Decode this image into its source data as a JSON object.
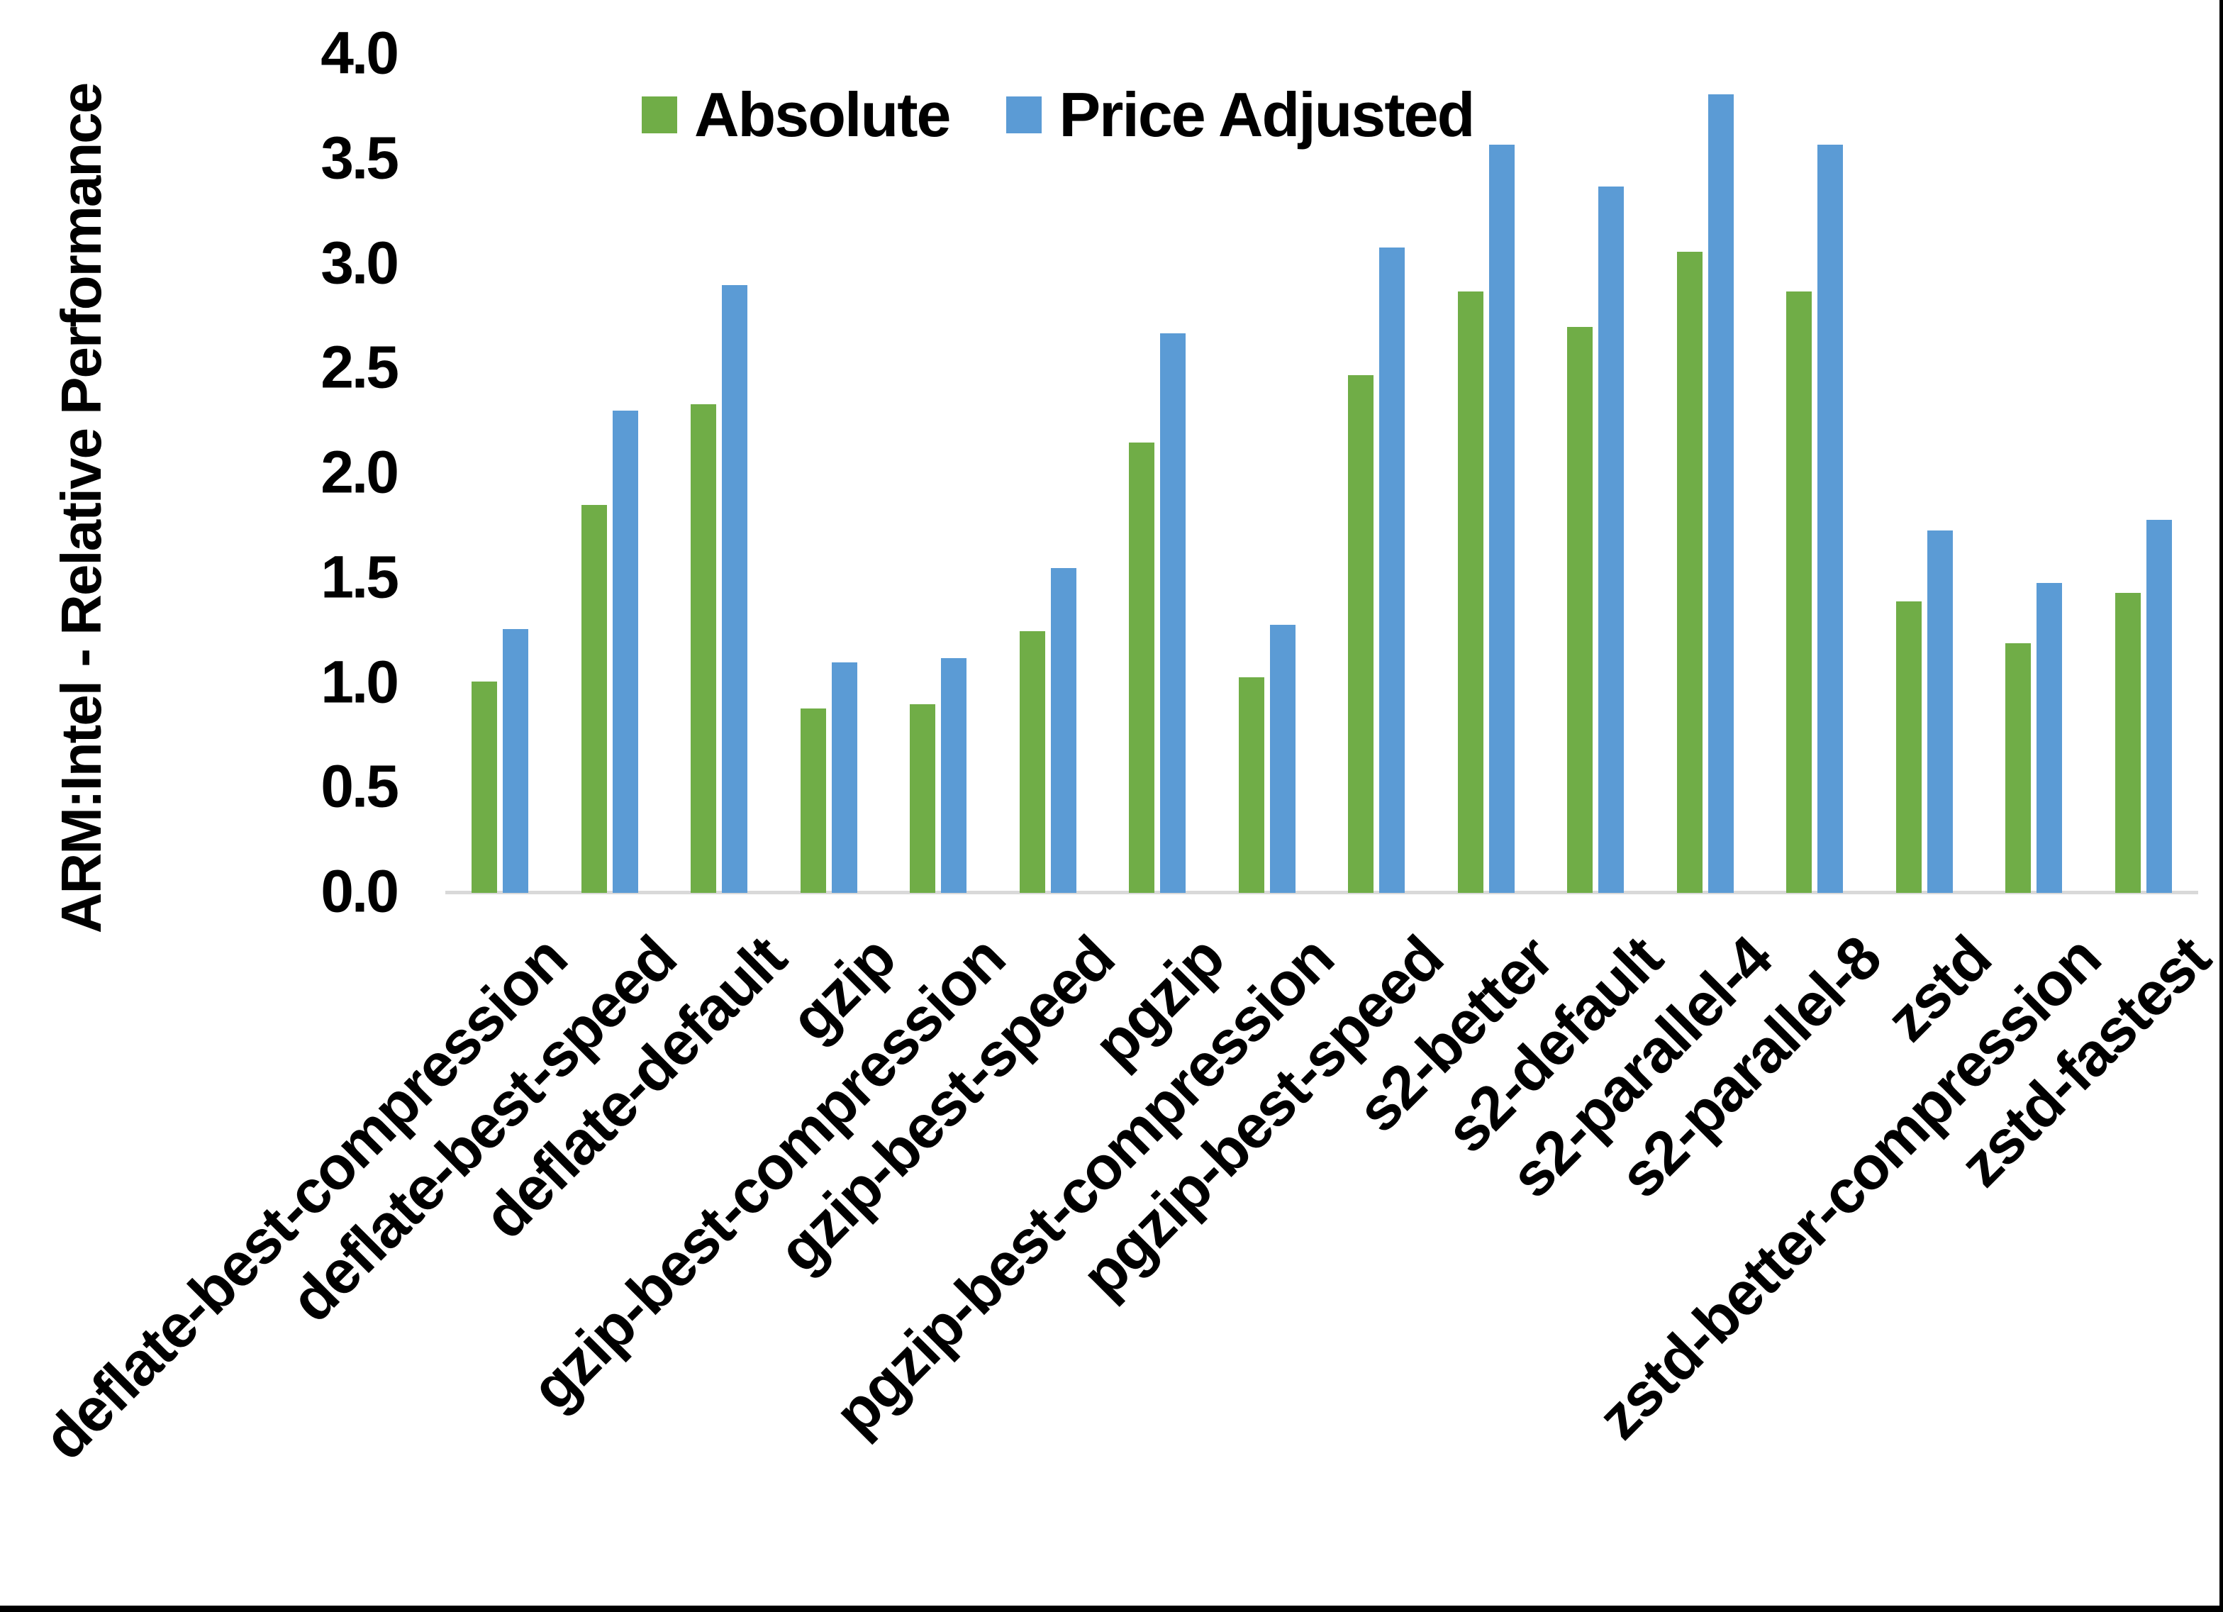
{
  "chart_data": {
    "type": "bar",
    "title": "",
    "xlabel": "",
    "ylabel": "ARM:Intel - Relative Performance",
    "ylim": [
      0.0,
      4.0
    ],
    "ytick_step": 0.5,
    "ytick_labels": [
      "0.0",
      "0.5",
      "1.0",
      "1.5",
      "2.0",
      "2.5",
      "3.0",
      "3.5",
      "4.0"
    ],
    "grid": "off",
    "legend_position": "top-center",
    "categories": [
      "deflate-best-compression",
      "deflate-best-speed",
      "deflate-default",
      "gzip",
      "gzip-best-compression",
      "gzip-best-speed",
      "pgzip",
      "pgzip-best-compression",
      "pgzip-best-speed",
      "s2-better",
      "s2-default",
      "s2-parallel-4",
      "s2-parallel-8",
      "zstd",
      "zstd-better-compression",
      "zstd-fastest"
    ],
    "series": [
      {
        "name": "Absolute",
        "color": "#70AD47",
        "values": [
          1.01,
          1.85,
          2.33,
          0.88,
          0.9,
          1.25,
          2.15,
          1.03,
          2.47,
          2.87,
          2.7,
          3.06,
          2.87,
          1.39,
          1.19,
          1.43
        ]
      },
      {
        "name": "Price Adjusted",
        "color": "#5B9BD5",
        "values": [
          1.26,
          2.3,
          2.9,
          1.1,
          1.12,
          1.55,
          2.67,
          1.28,
          3.08,
          3.57,
          3.37,
          3.81,
          3.57,
          1.73,
          1.48,
          1.78
        ]
      }
    ],
    "axis_line_color": "#D9D9D9",
    "text_color": "#000000",
    "background_color": "#FFFFFF",
    "border_color": "#000000"
  }
}
